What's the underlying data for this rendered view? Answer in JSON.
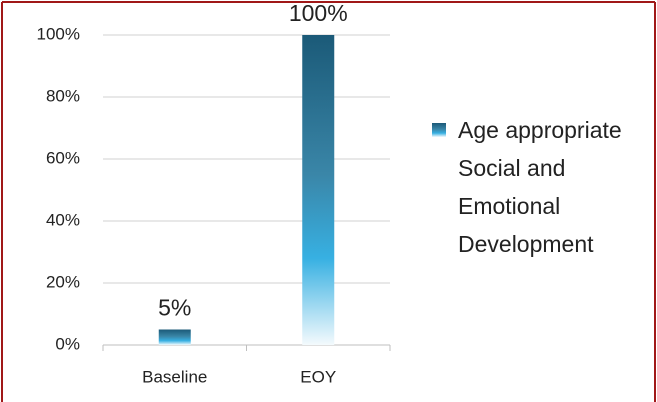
{
  "chart_data": {
    "type": "bar",
    "categories": [
      "Baseline",
      "EOY"
    ],
    "series": [
      {
        "name": "Age appropriate Social and Emotional Development",
        "color": "#1f5f7f",
        "values": [
          5,
          100
        ],
        "value_labels": [
          "5%",
          "100%"
        ]
      }
    ],
    "ylim": [
      0,
      100
    ],
    "yticks": [
      {
        "value": 0,
        "label": "0%"
      },
      {
        "value": 20,
        "label": "20%"
      },
      {
        "value": 40,
        "label": "40%"
      },
      {
        "value": 60,
        "label": "60%"
      },
      {
        "value": 80,
        "label": "80%"
      },
      {
        "value": 100,
        "label": "100%"
      }
    ],
    "grid": true,
    "legend": "right"
  }
}
